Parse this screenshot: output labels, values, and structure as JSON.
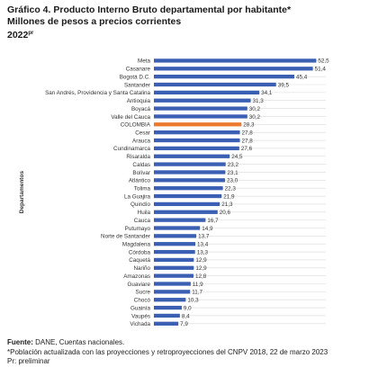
{
  "title": {
    "line1": "Gráfico 4. Producto Interno Bruto departamental por habitante*",
    "line2": "Millones de pesos a precios corrientes",
    "line3_main": "2022",
    "line3_sup": "pr"
  },
  "footer": {
    "source_label": "Fuente:",
    "source_text": " DANE, Cuentas nacionales.",
    "note": "*Población actualizada con las proyecciones y retroproyecciones del CNPV 2018, 22 de marzo 2023",
    "prelim": "Pr: preliminar"
  },
  "colors": {
    "bar": "#3b5fb3",
    "highlight": "#ec7a2e",
    "grid": "#d9d9d9",
    "text": "#333333"
  },
  "chart_data": {
    "type": "bar",
    "orientation": "horizontal",
    "ylabel": "Departamentos",
    "xlim": [
      0,
      55
    ],
    "highlight_category": "COLOMBIA",
    "categories": [
      "Meta",
      "Casanare",
      "Bogotá D.C.",
      "Santander",
      "San Andrés, Providencia y Santa Catalina",
      "Antioquia",
      "Boyacá",
      "Valle del Cauca",
      "COLOMBIA",
      "Cesar",
      "Arauca",
      "Cundinamarca",
      "Risaralda",
      "Caldas",
      "Bolívar",
      "Atlántico",
      "Tolima",
      "La Guajira",
      "Quindío",
      "Huila",
      "Cauca",
      "Putumayo",
      "Norte de Santander",
      "Magdalena",
      "Córdoba",
      "Caquetá",
      "Nariño",
      "Amazonas",
      "Guaviare",
      "Sucre",
      "Chocó",
      "Guainía",
      "Vaupés",
      "Vichada"
    ],
    "values": [
      52.5,
      51.4,
      45.4,
      39.5,
      34.1,
      31.3,
      30.2,
      30.2,
      28.3,
      27.8,
      27.8,
      27.6,
      24.5,
      23.2,
      23.1,
      23.0,
      22.3,
      21.9,
      21.3,
      20.6,
      16.7,
      14.9,
      13.7,
      13.4,
      13.3,
      12.9,
      12.9,
      12.8,
      11.9,
      11.7,
      10.3,
      9.0,
      8.4,
      7.9
    ],
    "value_labels": [
      "52,5",
      "51,4",
      "45,4",
      "39,5",
      "34,1",
      "31,3",
      "30,2",
      "30,2",
      "28,3",
      "27,8",
      "27,8",
      "27,6",
      "24,5",
      "23,2",
      "23,1",
      "23,0",
      "22,3",
      "21,9",
      "21,3",
      "20,6",
      "16,7",
      "14,9",
      "13,7",
      "13,4",
      "13,3",
      "12,9",
      "12,9",
      "12,8",
      "11,9",
      "11,7",
      "10,3",
      "9,0",
      "8,4",
      "7,9"
    ]
  }
}
